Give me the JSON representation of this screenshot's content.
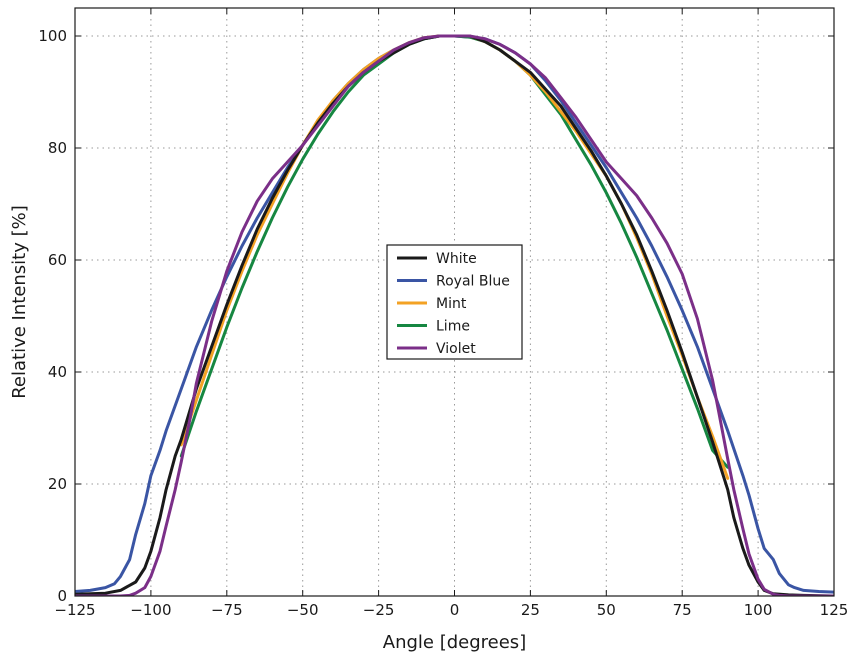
{
  "chart_data": {
    "type": "line",
    "title": "",
    "xlabel": "Angle [degrees]",
    "ylabel": "Relative Intensity [%]",
    "xlim": [
      -125,
      125
    ],
    "ylim": [
      0,
      105
    ],
    "xticks": [
      -125,
      -100,
      -75,
      -50,
      -25,
      0,
      25,
      50,
      75,
      100,
      125
    ],
    "yticks": [
      0,
      20,
      40,
      60,
      80,
      100
    ],
    "xtick_labels": [
      "−125",
      "−100",
      "−75",
      "−50",
      "−25",
      "0",
      "25",
      "50",
      "75",
      "100",
      "125"
    ],
    "ytick_labels": [
      "0",
      "20",
      "40",
      "60",
      "80",
      "100"
    ],
    "grid": true,
    "legend_position": "center",
    "series": [
      {
        "name": "White",
        "color": "#1a1a1a",
        "x": [
          -125,
          -115,
          -110,
          -105,
          -102,
          -100,
          -97,
          -95,
          -92,
          -90,
          -85,
          -80,
          -75,
          -70,
          -65,
          -60,
          -55,
          -50,
          -45,
          -40,
          -35,
          -30,
          -25,
          -20,
          -15,
          -10,
          -5,
          0,
          5,
          10,
          15,
          20,
          25,
          30,
          35,
          40,
          45,
          50,
          55,
          60,
          65,
          70,
          75,
          80,
          85,
          90,
          92,
          95,
          97,
          100,
          102,
          105,
          110,
          115,
          125
        ],
        "y": [
          0.3,
          0.5,
          1.0,
          2.5,
          5.0,
          8.0,
          14.0,
          19.0,
          25.0,
          28.0,
          37.0,
          44.5,
          52.0,
          59.0,
          65.5,
          71.0,
          76.0,
          80.5,
          84.5,
          88.0,
          91.0,
          93.5,
          95.5,
          97.0,
          98.5,
          99.5,
          100.0,
          100.0,
          100.0,
          99.0,
          97.5,
          95.5,
          93.5,
          90.5,
          87.5,
          83.5,
          79.5,
          75.0,
          70.0,
          64.5,
          58.0,
          51.0,
          43.5,
          35.5,
          27.5,
          19.0,
          14.0,
          8.5,
          5.5,
          2.5,
          1.0,
          0.4,
          0.2,
          0.1,
          0.0
        ]
      },
      {
        "name": "Royal Blue",
        "color": "#3a55a4",
        "x": [
          -125,
          -120,
          -115,
          -112,
          -110,
          -107,
          -105,
          -102,
          -100,
          -97,
          -95,
          -90,
          -85,
          -80,
          -75,
          -70,
          -65,
          -60,
          -55,
          -50,
          -45,
          -40,
          -35,
          -30,
          -25,
          -20,
          -15,
          -10,
          -5,
          0,
          5,
          10,
          15,
          20,
          25,
          30,
          35,
          40,
          45,
          50,
          55,
          60,
          65,
          70,
          75,
          80,
          85,
          90,
          95,
          97,
          100,
          102,
          105,
          107,
          110,
          112,
          115,
          120,
          125
        ],
        "y": [
          0.8,
          1.0,
          1.5,
          2.2,
          3.5,
          6.5,
          11.0,
          16.5,
          21.5,
          26.0,
          29.5,
          37.0,
          44.5,
          51.0,
          57.0,
          62.5,
          67.5,
          72.0,
          76.5,
          80.5,
          84.5,
          88.5,
          91.5,
          94.0,
          96.0,
          97.5,
          98.8,
          99.5,
          100.0,
          100.0,
          99.8,
          99.5,
          98.5,
          97.0,
          95.0,
          92.0,
          88.5,
          84.5,
          80.5,
          76.5,
          72.0,
          67.5,
          62.5,
          57.0,
          51.0,
          44.5,
          37.0,
          29.5,
          21.5,
          18.0,
          12.0,
          8.5,
          6.5,
          4.0,
          2.0,
          1.5,
          1.0,
          0.8,
          0.7
        ]
      },
      {
        "name": "Mint",
        "color": "#f3a224",
        "x": [
          -90,
          -85,
          -80,
          -75,
          -70,
          -65,
          -60,
          -55,
          -50,
          -45,
          -40,
          -35,
          -30,
          -25,
          -20,
          -15,
          -10,
          -5,
          0,
          5,
          10,
          15,
          20,
          25,
          30,
          35,
          40,
          45,
          50,
          55,
          60,
          65,
          70,
          75,
          80,
          85,
          90
        ],
        "y": [
          27.0,
          35.0,
          43.0,
          51.0,
          58.0,
          64.5,
          70.0,
          75.5,
          80.5,
          85.0,
          88.5,
          91.5,
          94.0,
          96.0,
          97.5,
          98.8,
          99.7,
          100.0,
          100.0,
          100.0,
          99.0,
          97.5,
          95.5,
          93.0,
          90.0,
          86.5,
          83.0,
          79.0,
          75.0,
          70.0,
          64.0,
          57.5,
          50.0,
          43.0,
          35.5,
          28.5,
          21.0
        ]
      },
      {
        "name": "Lime",
        "color": "#168741",
        "x": [
          -90,
          -85,
          -80,
          -75,
          -70,
          -65,
          -60,
          -55,
          -50,
          -45,
          -40,
          -35,
          -30,
          -25,
          -20,
          -15,
          -10,
          -5,
          0,
          5,
          10,
          15,
          20,
          25,
          30,
          35,
          40,
          45,
          50,
          55,
          60,
          65,
          70,
          75,
          80,
          85,
          90
        ],
        "y": [
          25.0,
          33.0,
          40.5,
          48.0,
          55.0,
          61.5,
          67.5,
          73.0,
          78.0,
          82.5,
          86.5,
          90.0,
          93.0,
          95.0,
          97.0,
          98.5,
          99.5,
          100.0,
          100.0,
          99.8,
          99.0,
          97.5,
          95.5,
          93.0,
          89.5,
          86.0,
          81.5,
          77.0,
          72.0,
          66.5,
          60.5,
          54.0,
          47.5,
          40.5,
          33.5,
          26.0,
          23.0
        ]
      },
      {
        "name": "Violet",
        "color": "#7b2f88",
        "x": [
          -125,
          -110,
          -107,
          -105,
          -102,
          -100,
          -97,
          -95,
          -92,
          -90,
          -87,
          -85,
          -80,
          -75,
          -70,
          -65,
          -60,
          -55,
          -50,
          -45,
          -40,
          -35,
          -30,
          -25,
          -20,
          -15,
          -10,
          -5,
          0,
          5,
          10,
          15,
          20,
          25,
          30,
          35,
          40,
          45,
          50,
          55,
          60,
          65,
          70,
          75,
          80,
          85,
          87,
          90,
          92,
          95,
          97,
          100,
          102,
          105,
          107,
          110,
          125
        ],
        "y": [
          0.0,
          0.0,
          0.1,
          0.5,
          1.5,
          3.5,
          8.0,
          12.5,
          19.0,
          24.0,
          32.0,
          38.0,
          49.0,
          58.0,
          65.0,
          70.5,
          74.5,
          77.5,
          80.5,
          84.0,
          87.5,
          91.0,
          93.5,
          95.5,
          97.5,
          98.8,
          99.7,
          100.0,
          100.0,
          100.0,
          99.5,
          98.5,
          97.0,
          95.0,
          92.5,
          89.0,
          85.5,
          81.5,
          77.5,
          74.5,
          71.5,
          67.5,
          63.0,
          57.5,
          49.5,
          38.5,
          33.0,
          24.5,
          19.0,
          12.0,
          7.5,
          3.0,
          1.2,
          0.3,
          0.1,
          0.0,
          0.0
        ]
      }
    ]
  }
}
